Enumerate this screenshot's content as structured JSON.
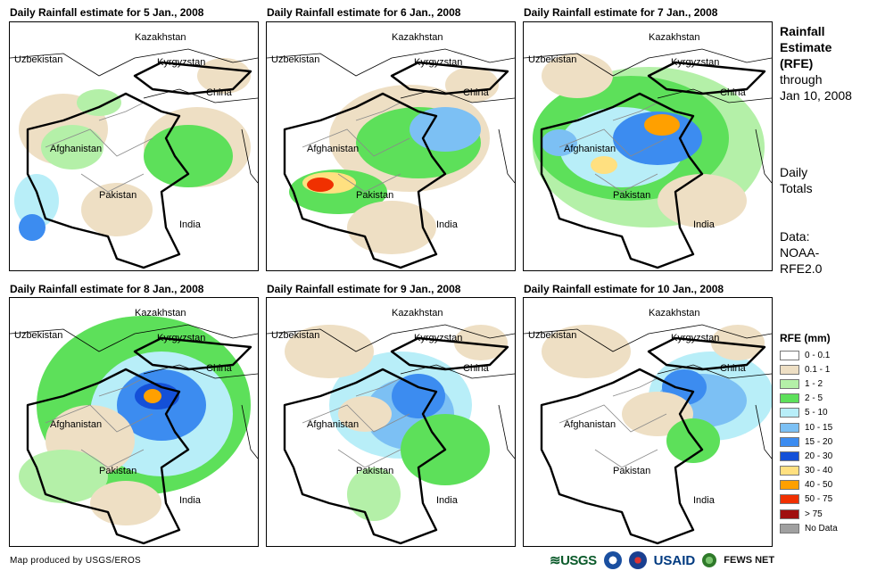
{
  "panels": [
    {
      "title": "Daily Rainfall estimate for 5 Jan., 2008"
    },
    {
      "title": "Daily Rainfall estimate for 6 Jan., 2008"
    },
    {
      "title": "Daily Rainfall estimate for 7 Jan., 2008"
    },
    {
      "title": "Daily Rainfall estimate for 8 Jan., 2008"
    },
    {
      "title": "Daily Rainfall estimate for 9 Jan., 2008"
    },
    {
      "title": "Daily Rainfall estimate for 10 Jan., 2008"
    }
  ],
  "map_labels": {
    "kazakhstan": "Kazakhstan",
    "uzbekistan": "Uzbekistan",
    "kyrgyzstan": "Kyrgyzstan",
    "china": "China",
    "afghanistan": "Afghanistan",
    "pakistan": "Pakistan",
    "india": "India"
  },
  "side": {
    "line1": "Rainfall",
    "line2": "Estimate",
    "line3": "(RFE)",
    "line4": "through",
    "line5": "Jan 10, 2008",
    "daily1": "Daily",
    "daily2": "Totals",
    "data1": "Data:",
    "data2": "NOAA-",
    "data3": "RFE2.0"
  },
  "legend": {
    "title": "RFE (mm)",
    "items": [
      {
        "label": "0 - 0.1",
        "color": "#ffffff"
      },
      {
        "label": "0.1 - 1",
        "color": "#eedfc4"
      },
      {
        "label": "1 - 2",
        "color": "#b4f0a8"
      },
      {
        "label": "2 - 5",
        "color": "#5de05a"
      },
      {
        "label": "5 - 10",
        "color": "#b8eef8"
      },
      {
        "label": "10 - 15",
        "color": "#7cc0f4"
      },
      {
        "label": "15 - 20",
        "color": "#3c8cf0"
      },
      {
        "label": "20 - 30",
        "color": "#1450d8"
      },
      {
        "label": "30 - 40",
        "color": "#ffe080"
      },
      {
        "label": "40 - 50",
        "color": "#ffa000"
      },
      {
        "label": "50 - 75",
        "color": "#f03000"
      },
      {
        "label": "> 75",
        "color": "#a01010"
      },
      {
        "label": "No Data",
        "color": "#a0a0a0"
      }
    ]
  },
  "credit": "Map produced by USGS/EROS",
  "logos": {
    "usgs": "USGS",
    "usaid": "USAID",
    "fews": "FEWS NET"
  }
}
